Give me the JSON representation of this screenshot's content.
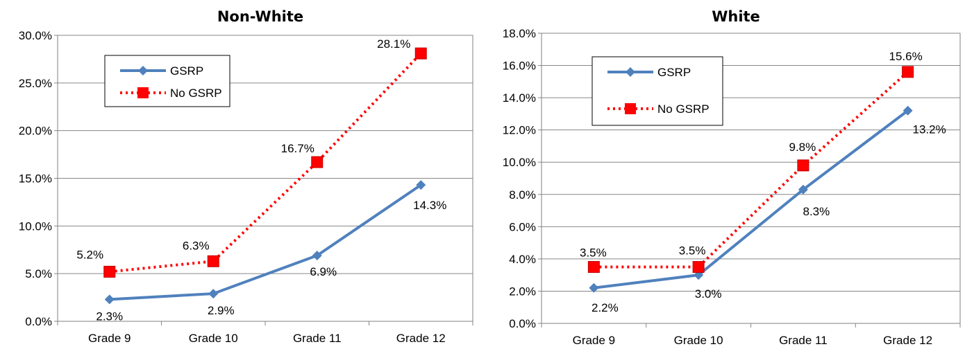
{
  "chart_data": [
    {
      "type": "line",
      "title": "Non-White",
      "categories": [
        "Grade 9",
        "Grade 10",
        "Grade 11",
        "Grade 12"
      ],
      "ylim": [
        0,
        30
      ],
      "yticks": [
        "0.0%",
        "5.0%",
        "10.0%",
        "15.0%",
        "20.0%",
        "25.0%",
        "30.0%"
      ],
      "ytick_values": [
        0,
        5,
        10,
        15,
        20,
        25,
        30
      ],
      "grid": true,
      "legend_position": "top-left",
      "series": [
        {
          "name": "GSRP",
          "values": [
            2.3,
            2.9,
            6.9,
            14.3
          ],
          "labels": [
            "2.3%",
            "2.9%",
            "6.9%",
            "14.3%"
          ],
          "color": "#4f81bd",
          "style": "solid",
          "marker": "diamond"
        },
        {
          "name": "No GSRP",
          "values": [
            5.2,
            6.3,
            16.7,
            28.1
          ],
          "labels": [
            "5.2%",
            "6.3%",
            "16.7%",
            "28.1%"
          ],
          "color": "#ff0000",
          "style": "dotted",
          "marker": "square"
        }
      ]
    },
    {
      "type": "line",
      "title": "White",
      "categories": [
        "Grade 9",
        "Grade 10",
        "Grade 11",
        "Grade 12"
      ],
      "ylim": [
        0,
        18
      ],
      "yticks": [
        "0.0%",
        "2.0%",
        "4.0%",
        "6.0%",
        "8.0%",
        "10.0%",
        "12.0%",
        "14.0%",
        "16.0%",
        "18.0%"
      ],
      "ytick_values": [
        0,
        2,
        4,
        6,
        8,
        10,
        12,
        14,
        16,
        18
      ],
      "grid": true,
      "legend_position": "top-left",
      "series": [
        {
          "name": "GSRP",
          "values": [
            2.2,
            3.0,
            8.3,
            13.2
          ],
          "labels": [
            "2.2%",
            "3.0%",
            "8.3%",
            "13.2%"
          ],
          "color": "#4f81bd",
          "style": "solid",
          "marker": "diamond"
        },
        {
          "name": "No GSRP",
          "values": [
            3.5,
            3.5,
            9.8,
            15.6
          ],
          "labels": [
            "3.5%",
            "3.5%",
            "9.8%",
            "15.6%"
          ],
          "color": "#ff0000",
          "style": "dotted",
          "marker": "square"
        }
      ]
    }
  ]
}
